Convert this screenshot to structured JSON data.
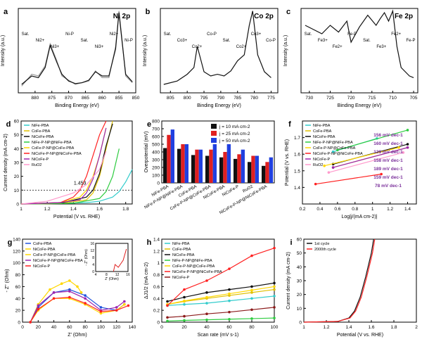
{
  "chart_data": [
    {
      "id": "a",
      "type": "line",
      "panel_label": "a",
      "title": "Ni 2p",
      "xlabel": "Binding Energy (eV)",
      "ylabel": "Intensity (a.u.)",
      "xlim": [
        885,
        850
      ],
      "xticks": [
        880,
        875,
        870,
        865,
        860,
        855,
        850
      ],
      "annotations": [
        "Sat.",
        "Ni2+",
        "Ni3+",
        "Ni-P",
        "Sat.",
        "Ni3+",
        "Ni2+",
        "Ni-P"
      ],
      "series": [
        {
          "color": "#9a9a9a",
          "x": [
            884,
            881,
            879,
            877,
            875.5,
            873.5,
            872,
            870,
            868,
            866,
            864,
            862,
            860,
            858,
            856,
            855,
            854,
            853,
            851
          ],
          "y": [
            0.08,
            0.22,
            0.2,
            0.32,
            0.58,
            0.38,
            0.2,
            0.15,
            0.1,
            0.12,
            0.14,
            0.26,
            0.18,
            0.18,
            0.55,
            0.97,
            0.6,
            0.2,
            0.12
          ]
        },
        {
          "color": "#111111",
          "x": [
            884,
            881,
            879,
            877,
            875.5,
            873.5,
            872,
            870,
            868,
            866,
            864,
            862,
            860,
            858,
            856,
            855,
            854,
            853,
            851
          ],
          "y": [
            0.1,
            0.2,
            0.18,
            0.3,
            0.56,
            0.36,
            0.22,
            0.14,
            0.11,
            0.12,
            0.15,
            0.25,
            0.2,
            0.2,
            0.52,
            0.95,
            0.58,
            0.22,
            0.13
          ]
        }
      ]
    },
    {
      "id": "b",
      "type": "line",
      "panel_label": "b",
      "title": "Co 2p",
      "xlabel": "Binding Energy (eV)",
      "ylabel": "Intensity (a.u.)",
      "xlim": [
        808,
        773
      ],
      "xticks": [
        805,
        800,
        795,
        790,
        785,
        780,
        775
      ],
      "annotations": [
        "Sat.",
        "Co3+",
        "Co2+",
        "Co-P",
        "Sat.",
        "Co2+",
        "Co3+",
        "Co-P"
      ],
      "series": [
        {
          "color": "#111111",
          "x": [
            807,
            803,
            800,
            798,
            797,
            795,
            793,
            791,
            789,
            787,
            785,
            783,
            781.5,
            780.5,
            779,
            777,
            775
          ],
          "y": [
            0.1,
            0.14,
            0.22,
            0.3,
            0.55,
            0.25,
            0.2,
            0.22,
            0.2,
            0.26,
            0.38,
            0.45,
            0.8,
            0.97,
            0.45,
            0.25,
            0.18
          ]
        }
      ]
    },
    {
      "id": "c",
      "type": "line",
      "panel_label": "c",
      "title": "Fe 2p",
      "xlabel": "Binding Energy (eV)",
      "ylabel": "Intensity (a.u.)",
      "xlim": [
        732,
        704
      ],
      "xticks": [
        730,
        725,
        720,
        715,
        710,
        705
      ],
      "annotations": [
        "Sat.",
        "Fe3+",
        "Fe2+",
        "Fe-P",
        "Sat.",
        "Fe3+",
        "Fe2+",
        "Fe-P"
      ],
      "series": [
        {
          "color": "#111111",
          "x": [
            731,
            729,
            727,
            725,
            723,
            721,
            720,
            718,
            716,
            714,
            713,
            712,
            711,
            710,
            709,
            708,
            706,
            705
          ],
          "y": [
            0.8,
            0.75,
            0.7,
            0.8,
            0.72,
            0.85,
            0.6,
            0.78,
            0.92,
            0.8,
            0.88,
            0.95,
            0.85,
            0.97,
            0.55,
            0.3,
            0.2,
            0.18
          ]
        }
      ]
    },
    {
      "id": "d",
      "type": "line",
      "panel_label": "d",
      "xlabel": "Potential (V vs. RHE)",
      "ylabel": "Current density (mA cm-2)",
      "xlim": [
        1.0,
        1.85
      ],
      "ylim": [
        0,
        60
      ],
      "xticks": [
        1.0,
        1.2,
        1.4,
        1.6,
        1.8
      ],
      "yticks": [
        0,
        10,
        20,
        30,
        40,
        50,
        60
      ],
      "reference_line": 10,
      "annotations": [
        "1.453"
      ],
      "series": [
        {
          "name": "NiFe-PBA",
          "color": "#33cccc",
          "x": [
            1.0,
            1.3,
            1.5,
            1.6,
            1.7,
            1.75,
            1.8,
            1.85
          ],
          "y": [
            0,
            0.5,
            1,
            2,
            5,
            9,
            16,
            25
          ]
        },
        {
          "name": "CoFe-PBA",
          "color": "#e0c000",
          "x": [
            1.0,
            1.3,
            1.5,
            1.55,
            1.6,
            1.65,
            1.7
          ],
          "y": [
            0,
            0.3,
            3,
            8,
            20,
            40,
            60
          ]
        },
        {
          "name": "NiCoFe-PBA",
          "color": "#111111",
          "x": [
            1.0,
            1.3,
            1.5,
            1.55,
            1.6,
            1.65,
            1.7
          ],
          "y": [
            0,
            0.5,
            5,
            10,
            22,
            42,
            58
          ]
        },
        {
          "name": "NiFe-P-NP@NiFe-PBA",
          "color": "#2ecc40",
          "x": [
            1.0,
            1.4,
            1.6,
            1.65,
            1.7,
            1.75
          ],
          "y": [
            0,
            0.5,
            4,
            9,
            20,
            40
          ]
        },
        {
          "name": "CoFe-P-NP@CoFe-PBA",
          "color": "#ffd700",
          "x": [
            1.0,
            1.3,
            1.45,
            1.5,
            1.55,
            1.6,
            1.65
          ],
          "y": [
            0,
            1,
            5,
            10,
            20,
            35,
            55
          ]
        },
        {
          "name": "NiCoFe-P-NP@NiCoFe-PBA",
          "color": "#ff2020",
          "x": [
            1.0,
            1.3,
            1.4,
            1.45,
            1.5,
            1.55,
            1.6,
            1.65
          ],
          "y": [
            0,
            1,
            5,
            10,
            20,
            35,
            50,
            60
          ]
        },
        {
          "name": "NiCoFe-P",
          "color": "#9c27b0",
          "x": [
            1.0,
            1.3,
            1.45,
            1.5,
            1.55,
            1.6,
            1.65
          ],
          "y": [
            0,
            1,
            3,
            8,
            18,
            35,
            55
          ]
        },
        {
          "name": "RuO2",
          "color": "#ff99cc",
          "x": [
            1.0,
            1.2,
            1.4,
            1.5,
            1.6,
            1.65
          ],
          "y": [
            0,
            2,
            8,
            14,
            25,
            38
          ]
        }
      ]
    },
    {
      "id": "e",
      "type": "bar",
      "panel_label": "e",
      "ylabel": "Overpotential (mV)",
      "ylim": [
        0,
        800
      ],
      "yticks": [
        0,
        100,
        200,
        300,
        400,
        500,
        600,
        700,
        800
      ],
      "categories": [
        "NiFe-PBA",
        "NiFe-P-NP@NiFe-PBA",
        "CoFe-PBA",
        "CoFe-P-NP@CoFe-PBA",
        "NiCoFe-PBA",
        "NiCoFe-P",
        "RuO2",
        "NiCoFe-P-NP@NiCoFe-PBA"
      ],
      "series": [
        {
          "name": "j = 10 mA cm-2",
          "color": "#111111",
          "values": [
            450,
            440,
            360,
            350,
            330,
            310,
            270,
            220
          ]
        },
        {
          "name": "j = 25 mA cm-2",
          "color": "#e02020",
          "values": [
            620,
            500,
            430,
            430,
            400,
            370,
            350,
            270
          ]
        },
        {
          "name": "j = 50 mA cm-2",
          "color": "#2040e0",
          "values": [
            690,
            500,
            430,
            500,
            500,
            430,
            350,
            330
          ]
        }
      ]
    },
    {
      "id": "f",
      "type": "scatter",
      "panel_label": "f",
      "xlabel": "Log|j/(mA cm-2)|",
      "ylabel": "Potential (V vs. RHE)",
      "xlim": [
        0.2,
        1.5
      ],
      "ylim": [
        1.3,
        1.8
      ],
      "xticks": [
        0.2,
        0.4,
        0.6,
        0.8,
        1.0,
        1.2,
        1.4
      ],
      "yticks": [
        1.4,
        1.5,
        1.6,
        1.7
      ],
      "annotations": [
        "156 mV dec-1",
        "160 mV dec-1",
        "139 mV dec-1",
        "158 mV dec-1",
        "189 mV dec-1",
        "159 mV dec-1",
        "78 mV dec-1"
      ],
      "series": [
        {
          "name": "NiFe-PBA",
          "color": "#33cccc",
          "x": [
            0.55,
            1.05
          ],
          "y": [
            1.615,
            1.695
          ]
        },
        {
          "name": "CoFe-PBA",
          "color": "#e0c000",
          "x": [
            0.55,
            1.4
          ],
          "y": [
            1.52,
            1.64
          ]
        },
        {
          "name": "NiCoFe-PBA",
          "color": "#111111",
          "x": [
            0.55,
            1.4
          ],
          "y": [
            1.54,
            1.66
          ]
        },
        {
          "name": "NiFe-P-NP@NiFe-PBA",
          "color": "#2ecc40",
          "x": [
            0.6,
            1.4
          ],
          "y": [
            1.625,
            1.745
          ]
        },
        {
          "name": "CoFe-P-NP@CoFe-PBA",
          "color": "#ffd700",
          "x": [
            0.45,
            1.3
          ],
          "y": [
            1.53,
            1.64
          ]
        },
        {
          "name": "NiCoFe-P-NP@NiCoFe-PBA",
          "color": "#ff2020",
          "x": [
            0.35,
            1.1
          ],
          "y": [
            1.42,
            1.48
          ]
        },
        {
          "name": "NiCoFe-P",
          "color": "#9c27b0",
          "x": [
            0.55,
            1.4
          ],
          "y": [
            1.52,
            1.64
          ]
        },
        {
          "name": "RuO2",
          "color": "#ff99cc",
          "x": [
            0.5,
            1.35
          ],
          "y": [
            1.49,
            1.61
          ]
        }
      ]
    },
    {
      "id": "g",
      "type": "scatter",
      "panel_label": "g",
      "xlabel": "Z' (Ohm)",
      "ylabel": "- Z'' (Ohm)",
      "xlim": [
        0,
        140
      ],
      "ylim": [
        0,
        140
      ],
      "xticks": [
        0,
        20,
        40,
        60,
        80,
        100,
        120,
        140
      ],
      "yticks": [
        0,
        20,
        40,
        60,
        80,
        100,
        120,
        140
      ],
      "inset": {
        "xlabel": "Z' (Ohm)",
        "ylabel": "- Z'' (Ohm)",
        "xticks": [
          4,
          8,
          12,
          16
        ],
        "yticks": [
          0,
          4,
          8,
          12,
          16
        ]
      },
      "series": [
        {
          "name": "CoFe-PBA",
          "color": "#2255dd",
          "x": [
            10,
            20,
            40,
            60,
            80,
            100,
            120,
            130
          ],
          "y": [
            0,
            25,
            50,
            55,
            45,
            25,
            20,
            30
          ]
        },
        {
          "name": "NiCoFe-PBA",
          "color": "#ffd700",
          "x": [
            10,
            20,
            35,
            50,
            60,
            70,
            75
          ],
          "y": [
            0,
            30,
            55,
            65,
            70,
            60,
            50
          ]
        },
        {
          "name": "CoFe-P-NP@CoFe-PBA",
          "color": "#ffd700",
          "x": [
            10,
            20,
            40,
            60,
            80,
            100,
            120,
            130
          ],
          "y": [
            0,
            20,
            40,
            40,
            30,
            15,
            20,
            30
          ]
        },
        {
          "name": "NiCoFe-P-NP@NiCoFe-PBA",
          "color": "#9c27b0",
          "x": [
            10,
            20,
            40,
            60,
            80,
            100,
            120,
            130
          ],
          "y": [
            0,
            28,
            50,
            52,
            40,
            20,
            25,
            35
          ]
        },
        {
          "name": "NiCoFe-P",
          "color": "#ff2020",
          "x": [
            10,
            20,
            40,
            60,
            80,
            100,
            120,
            135
          ],
          "y": [
            0,
            22,
            40,
            42,
            32,
            18,
            20,
            28
          ]
        }
      ]
    },
    {
      "id": "h",
      "type": "scatter",
      "panel_label": "h",
      "xlabel": "Scan rate (mV s-1)",
      "ylabel": "ΔJ1/2 (mA cm-2)",
      "xlim": [
        0,
        100
      ],
      "ylim": [
        0,
        1.4
      ],
      "xticks": [
        0,
        20,
        40,
        60,
        80,
        100
      ],
      "yticks": [
        0,
        0.2,
        0.4,
        0.6,
        0.8,
        1.0,
        1.2,
        1.4
      ],
      "series": [
        {
          "name": "NiFe-PBA",
          "color": "#33cccc",
          "x": [
            5,
            20,
            40,
            60,
            80,
            100
          ],
          "y": [
            0.28,
            0.3,
            0.32,
            0.36,
            0.4,
            0.44
          ]
        },
        {
          "name": "CoFe-PBA",
          "color": "#e0c000",
          "x": [
            5,
            20,
            40,
            60,
            80,
            100
          ],
          "y": [
            0.3,
            0.35,
            0.4,
            0.45,
            0.5,
            0.55
          ]
        },
        {
          "name": "NiCoFe-PBA",
          "color": "#111111",
          "x": [
            5,
            20,
            40,
            60,
            80,
            100
          ],
          "y": [
            0.35,
            0.42,
            0.5,
            0.55,
            0.6,
            0.66
          ]
        },
        {
          "name": "NiFe-P-NP@NiFe-PBA",
          "color": "#2ecc40",
          "x": [
            5,
            20,
            40,
            60,
            80,
            100
          ],
          "y": [
            0.02,
            0.03,
            0.04,
            0.05,
            0.06,
            0.07
          ]
        },
        {
          "name": "CoFe-P-NP@CoFe-PBA",
          "color": "#ffd700",
          "x": [
            5,
            20,
            40,
            60,
            80,
            100
          ],
          "y": [
            0.3,
            0.36,
            0.42,
            0.48,
            0.54,
            0.6
          ]
        },
        {
          "name": "NiCoFe-P-NP@NiCoFe-PBA",
          "color": "#ff2020",
          "x": [
            5,
            20,
            40,
            60,
            80,
            100
          ],
          "y": [
            0.28,
            0.55,
            0.7,
            0.9,
            1.12,
            1.25
          ]
        },
        {
          "name": "NiCoFe-P",
          "color": "#8b1a1a",
          "x": [
            5,
            20,
            40,
            60,
            80,
            100
          ],
          "y": [
            0.08,
            0.1,
            0.14,
            0.17,
            0.21,
            0.25
          ]
        }
      ]
    },
    {
      "id": "i",
      "type": "line",
      "panel_label": "i",
      "xlabel": "Potential (V vs. RHE)",
      "ylabel": "Current density (mA cm-2)",
      "xlim": [
        1.0,
        2.0
      ],
      "ylim": [
        0,
        60
      ],
      "xticks": [
        1.0,
        1.2,
        1.4,
        1.6,
        1.8,
        2.0
      ],
      "yticks": [
        0,
        10,
        20,
        30,
        40,
        50,
        60
      ],
      "series": [
        {
          "name": "1st cycle",
          "color": "#111111",
          "x": [
            1.0,
            1.3,
            1.4,
            1.45,
            1.5,
            1.55,
            1.6,
            1.62
          ],
          "y": [
            0,
            0.5,
            3,
            8,
            18,
            33,
            50,
            60
          ]
        },
        {
          "name": "2000th cycle",
          "color": "#ff2020",
          "x": [
            1.0,
            1.3,
            1.41,
            1.46,
            1.51,
            1.56,
            1.61,
            1.63
          ],
          "y": [
            0,
            0.5,
            3,
            8,
            18,
            33,
            50,
            60
          ]
        }
      ]
    }
  ]
}
